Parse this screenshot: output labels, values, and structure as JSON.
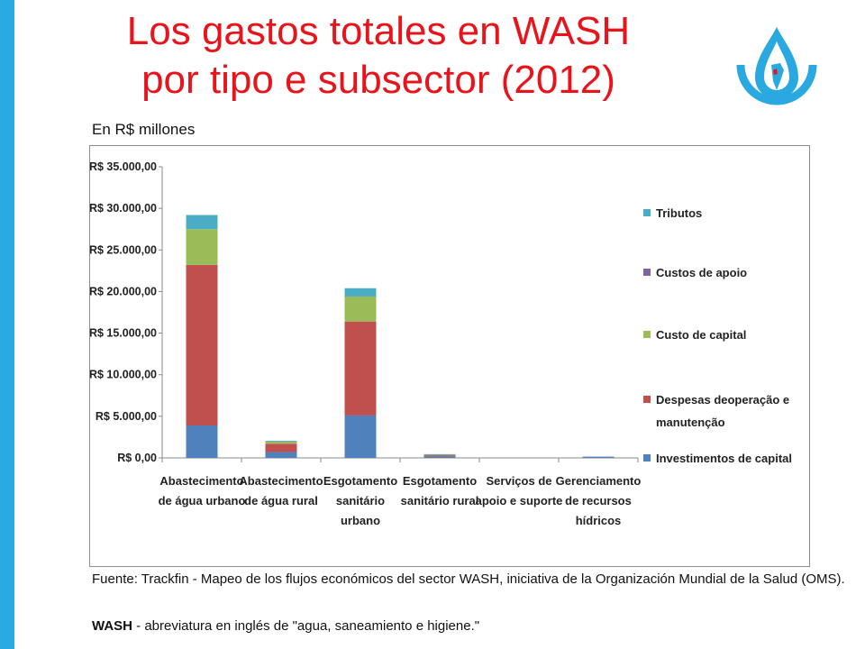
{
  "title_line1": "Los gastos totales en WASH",
  "title_line2": "por tipo e subsector (2012)",
  "subtitle": "En R$ millones",
  "source": "Fuente: Trackfin - Mapeo de los flujos económicos del sector WASH, iniciativa de la Organización Mundial de la Salud (OMS).",
  "note_term": "WASH",
  "note_text": " - abreviatura en inglés de \"agua, saneamiento e higiene.\"",
  "chart_data": {
    "type": "bar",
    "stacked": true,
    "ylim": [
      0,
      35000
    ],
    "ytick_values": [
      0,
      5000,
      10000,
      15000,
      20000,
      25000,
      30000,
      35000
    ],
    "yticks": [
      "R$ 0,00",
      "R$ 5.000,00",
      "R$ 10.000,00",
      "R$ 15.000,00",
      "R$ 20.000,00",
      "R$ 25.000,00",
      "R$ 30.000,00",
      "R$ 35.000,00"
    ],
    "categories": [
      [
        "Abastecimento",
        "de água urbano"
      ],
      [
        "Abastecimento",
        "de água rural"
      ],
      [
        "Esgotamento",
        "sanitário",
        "urbano"
      ],
      [
        "Esgotamento",
        "sanitário rural"
      ],
      [
        "Serviços de",
        "apoio e suporte"
      ],
      [
        "Gerenciamento",
        "de recursos",
        "hídricos"
      ]
    ],
    "series": [
      {
        "name": "Investimentos de capital",
        "legend_lines": [
          "Investimentos de capital"
        ],
        "color": "#4f81bd",
        "values": [
          3900,
          700,
          5100,
          150,
          0,
          150
        ]
      },
      {
        "name": "Despesas deoperação e manutenção",
        "legend_lines": [
          "Despesas deoperação e",
          "manutenção"
        ],
        "color": "#c0504d",
        "values": [
          19300,
          1000,
          11300,
          200,
          0,
          0
        ]
      },
      {
        "name": "Custo de capital",
        "legend_lines": [
          "Custo de capital"
        ],
        "color": "#9bbb59",
        "values": [
          4300,
          250,
          3000,
          50,
          0,
          0
        ]
      },
      {
        "name": "Custos de apoio",
        "legend_lines": [
          "Custos de apoio"
        ],
        "color": "#8064a2",
        "values": [
          0,
          0,
          0,
          0,
          0,
          0
        ]
      },
      {
        "name": "Tributos",
        "legend_lines": [
          "Tributos"
        ],
        "color": "#4bacc6",
        "values": [
          1700,
          100,
          1000,
          50,
          0,
          0
        ]
      }
    ],
    "legend_position": "right",
    "grid": false
  }
}
